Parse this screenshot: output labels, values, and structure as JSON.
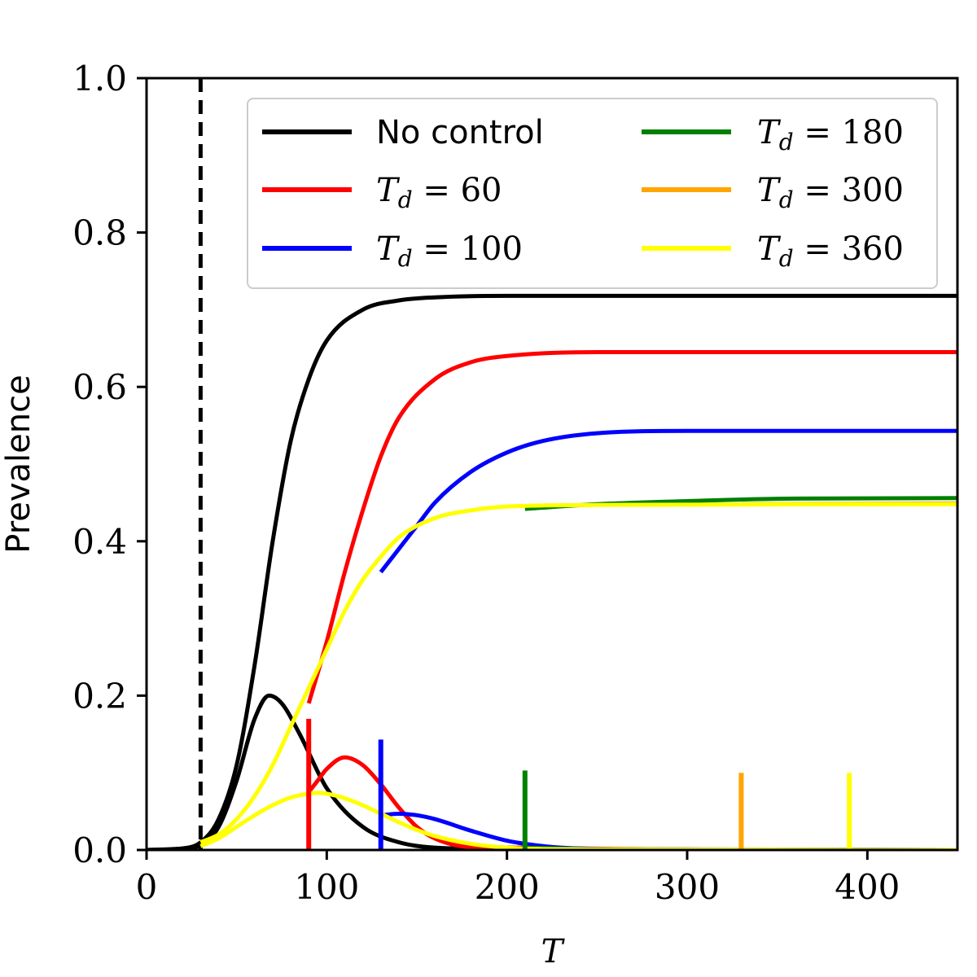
{
  "chart_data": {
    "type": "line",
    "title": "",
    "xlabel": "T",
    "ylabel": "Prevalence",
    "xlim": [
      0,
      450
    ],
    "ylim": [
      0,
      1.0
    ],
    "x_ticks": [
      "0",
      "100",
      "200",
      "300",
      "400"
    ],
    "y_ticks": [
      "0.0",
      "0.2",
      "0.4",
      "0.6",
      "0.8",
      "1.0"
    ],
    "grid": false,
    "legend_position": "top-right",
    "vertical_dashed_line": {
      "x": 30,
      "color": "#000000"
    },
    "series": [
      {
        "name": "No control",
        "color": "#000000",
        "cumulative": [
          [
            0,
            0
          ],
          [
            20,
            0.002
          ],
          [
            30,
            0.01
          ],
          [
            40,
            0.04
          ],
          [
            50,
            0.11
          ],
          [
            60,
            0.24
          ],
          [
            70,
            0.4
          ],
          [
            80,
            0.53
          ],
          [
            90,
            0.61
          ],
          [
            100,
            0.66
          ],
          [
            120,
            0.7
          ],
          [
            140,
            0.712
          ],
          [
            160,
            0.716
          ],
          [
            200,
            0.718
          ],
          [
            450,
            0.718
          ]
        ],
        "prevalence": [
          [
            0,
            0
          ],
          [
            20,
            0.002
          ],
          [
            30,
            0.006
          ],
          [
            40,
            0.03
          ],
          [
            50,
            0.09
          ],
          [
            60,
            0.17
          ],
          [
            68,
            0.2
          ],
          [
            75,
            0.19
          ],
          [
            85,
            0.15
          ],
          [
            100,
            0.08
          ],
          [
            120,
            0.03
          ],
          [
            140,
            0.01
          ],
          [
            160,
            0.003
          ],
          [
            200,
            0.001
          ],
          [
            450,
            0
          ]
        ]
      },
      {
        "name": "T_d = 60",
        "label_variable": "T",
        "label_subscript": "d",
        "label_value": "= 60",
        "color": "#ff0000",
        "control_time": 90,
        "marker_height": 0.17,
        "cumulative": [
          [
            90,
            0.19
          ],
          [
            100,
            0.27
          ],
          [
            110,
            0.36
          ],
          [
            120,
            0.44
          ],
          [
            130,
            0.51
          ],
          [
            140,
            0.56
          ],
          [
            160,
            0.61
          ],
          [
            180,
            0.632
          ],
          [
            200,
            0.64
          ],
          [
            250,
            0.645
          ],
          [
            450,
            0.645
          ]
        ],
        "prevalence": [
          [
            90,
            0.075
          ],
          [
            95,
            0.09
          ],
          [
            100,
            0.105
          ],
          [
            110,
            0.12
          ],
          [
            120,
            0.11
          ],
          [
            130,
            0.085
          ],
          [
            140,
            0.055
          ],
          [
            150,
            0.03
          ],
          [
            160,
            0.015
          ],
          [
            180,
            0.004
          ],
          [
            450,
            0
          ]
        ]
      },
      {
        "name": "T_d = 100",
        "label_variable": "T",
        "label_subscript": "d",
        "label_value": "= 100",
        "color": "#0000ff",
        "control_time": 130,
        "marker_height": 0.143,
        "cumulative": [
          [
            130,
            0.36
          ],
          [
            140,
            0.39
          ],
          [
            150,
            0.42
          ],
          [
            160,
            0.45
          ],
          [
            180,
            0.49
          ],
          [
            200,
            0.515
          ],
          [
            220,
            0.53
          ],
          [
            250,
            0.54
          ],
          [
            300,
            0.543
          ],
          [
            450,
            0.543
          ]
        ],
        "prevalence": [
          [
            130,
            0.045
          ],
          [
            140,
            0.047
          ],
          [
            150,
            0.045
          ],
          [
            160,
            0.04
          ],
          [
            180,
            0.025
          ],
          [
            200,
            0.012
          ],
          [
            210,
            0.008
          ],
          [
            230,
            0.003
          ],
          [
            260,
            0.001
          ],
          [
            450,
            0
          ]
        ]
      },
      {
        "name": "T_d = 180",
        "label_variable": "T",
        "label_subscript": "d",
        "label_value": "= 180",
        "color": "#008000",
        "control_time": 210,
        "marker_height": 0.103,
        "cumulative": [
          [
            210,
            0.442
          ],
          [
            250,
            0.448
          ],
          [
            300,
            0.452
          ],
          [
            350,
            0.455
          ],
          [
            450,
            0.456
          ]
        ],
        "prevalence": [
          [
            210,
            0.003
          ],
          [
            250,
            0.001
          ],
          [
            450,
            0
          ]
        ]
      },
      {
        "name": "T_d = 300",
        "label_variable": "T",
        "label_subscript": "d",
        "label_value": "= 300",
        "color": "#ffa500",
        "control_time": 330,
        "marker_height": 0.1,
        "cumulative": [
          [
            330,
            0.448
          ],
          [
            450,
            0.449
          ]
        ],
        "prevalence": [
          [
            330,
            0
          ],
          [
            450,
            0
          ]
        ]
      },
      {
        "name": "T_d = 360",
        "label_variable": "T",
        "label_subscript": "d",
        "label_value": "= 360",
        "color": "#ffff00",
        "control_time": 390,
        "marker_height": 0.1,
        "cumulative": [
          [
            30,
            0.01
          ],
          [
            40,
            0.02
          ],
          [
            50,
            0.04
          ],
          [
            60,
            0.07
          ],
          [
            70,
            0.11
          ],
          [
            80,
            0.16
          ],
          [
            90,
            0.21
          ],
          [
            100,
            0.26
          ],
          [
            110,
            0.31
          ],
          [
            120,
            0.35
          ],
          [
            130,
            0.38
          ],
          [
            140,
            0.405
          ],
          [
            160,
            0.43
          ],
          [
            180,
            0.44
          ],
          [
            200,
            0.445
          ],
          [
            250,
            0.447
          ],
          [
            450,
            0.448
          ]
        ],
        "prevalence": [
          [
            30,
            0.005
          ],
          [
            40,
            0.015
          ],
          [
            50,
            0.03
          ],
          [
            60,
            0.045
          ],
          [
            70,
            0.058
          ],
          [
            80,
            0.068
          ],
          [
            90,
            0.073
          ],
          [
            95,
            0.074
          ],
          [
            100,
            0.073
          ],
          [
            110,
            0.067
          ],
          [
            120,
            0.058
          ],
          [
            130,
            0.047
          ],
          [
            140,
            0.036
          ],
          [
            150,
            0.026
          ],
          [
            160,
            0.018
          ],
          [
            180,
            0.008
          ],
          [
            200,
            0.003
          ],
          [
            230,
            0.001
          ],
          [
            450,
            0
          ]
        ]
      }
    ]
  }
}
